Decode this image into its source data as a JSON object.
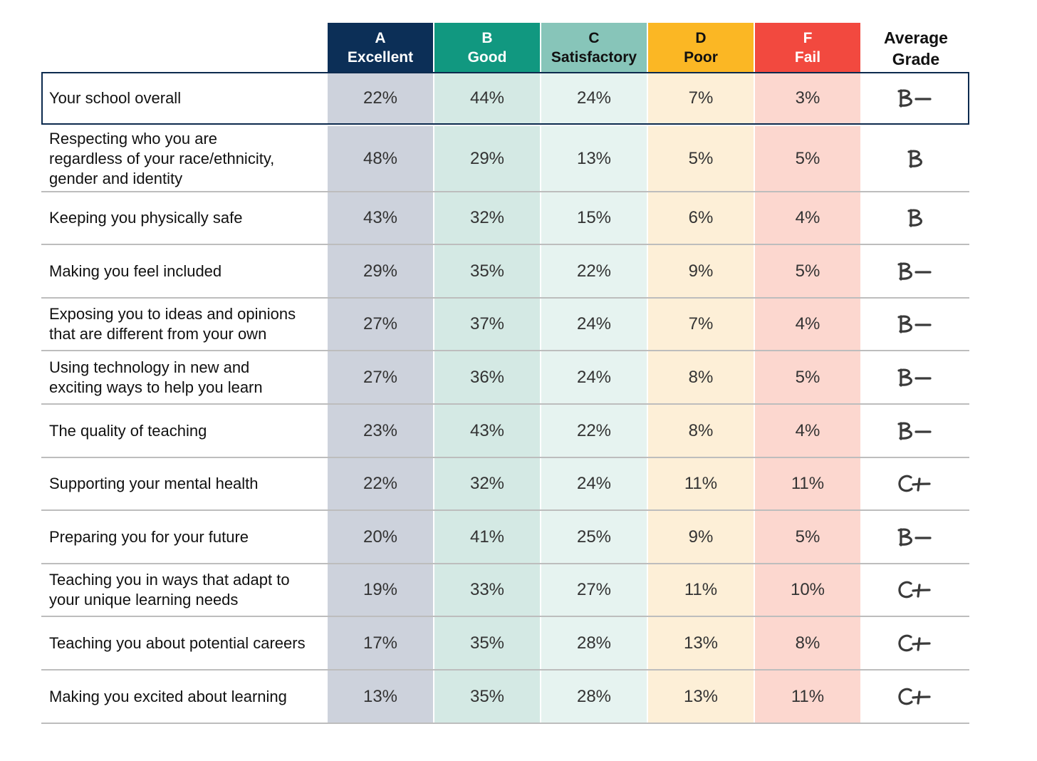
{
  "chart_data": {
    "type": "table",
    "columns": [
      {
        "letter": "A",
        "word": "Excellent",
        "color": "#0c2f57",
        "text_color": "#ffffff",
        "tint": "#cdd2dc"
      },
      {
        "letter": "B",
        "word": "Good",
        "color": "#119880",
        "text_color": "#ffffff",
        "tint": "#d4e9e4"
      },
      {
        "letter": "C",
        "word": "Satisfactory",
        "color": "#87c5b9",
        "text_color": "#111111",
        "tint": "#e6f3f0"
      },
      {
        "letter": "D",
        "word": "Poor",
        "color": "#fbb724",
        "text_color": "#111111",
        "tint": "#fdefd7"
      },
      {
        "letter": "F",
        "word": "Fail",
        "color": "#f2493f",
        "text_color": "#ffffff",
        "tint": "#fcd7cf"
      }
    ],
    "average_header": [
      "Average",
      "Grade"
    ],
    "rows": [
      {
        "label": [
          "Your school overall"
        ],
        "values": [
          "22%",
          "44%",
          "24%",
          "7%",
          "3%"
        ],
        "grade": "B-"
      },
      {
        "label": [
          "Respecting who you are",
          "regardless of your race/ethnicity,",
          "gender and identity"
        ],
        "values": [
          "48%",
          "29%",
          "13%",
          "5%",
          "5%"
        ],
        "grade": "B"
      },
      {
        "label": [
          "Keeping you physically safe"
        ],
        "values": [
          "43%",
          "32%",
          "15%",
          "6%",
          "4%"
        ],
        "grade": "B"
      },
      {
        "label": [
          "Making you feel included"
        ],
        "values": [
          "29%",
          "35%",
          "22%",
          "9%",
          "5%"
        ],
        "grade": "B-"
      },
      {
        "label": [
          "Exposing you to ideas and opinions",
          "that are different from your own"
        ],
        "values": [
          "27%",
          "37%",
          "24%",
          "7%",
          "4%"
        ],
        "grade": "B-"
      },
      {
        "label": [
          "Using technology in new and",
          "exciting ways to help you learn"
        ],
        "values": [
          "27%",
          "36%",
          "24%",
          "8%",
          "5%"
        ],
        "grade": "B-"
      },
      {
        "label": [
          "The quality of teaching"
        ],
        "values": [
          "23%",
          "43%",
          "22%",
          "8%",
          "4%"
        ],
        "grade": "B-"
      },
      {
        "label": [
          "Supporting your mental health"
        ],
        "values": [
          "22%",
          "32%",
          "24%",
          "11%",
          "11%"
        ],
        "grade": "C+"
      },
      {
        "label": [
          "Preparing you for your future"
        ],
        "values": [
          "20%",
          "41%",
          "25%",
          "9%",
          "5%"
        ],
        "grade": "B-"
      },
      {
        "label": [
          "Teaching you in ways that adapt to",
          "your unique learning needs"
        ],
        "values": [
          "19%",
          "33%",
          "27%",
          "11%",
          "10%"
        ],
        "grade": "C+"
      },
      {
        "label": [
          "Teaching you about potential careers"
        ],
        "values": [
          "17%",
          "35%",
          "28%",
          "13%",
          "8%"
        ],
        "grade": "C+"
      },
      {
        "label": [
          "Making you excited about learning"
        ],
        "values": [
          "13%",
          "35%",
          "28%",
          "13%",
          "11%"
        ],
        "grade": "C+"
      }
    ],
    "highlight_color": "#0c2a4e"
  }
}
